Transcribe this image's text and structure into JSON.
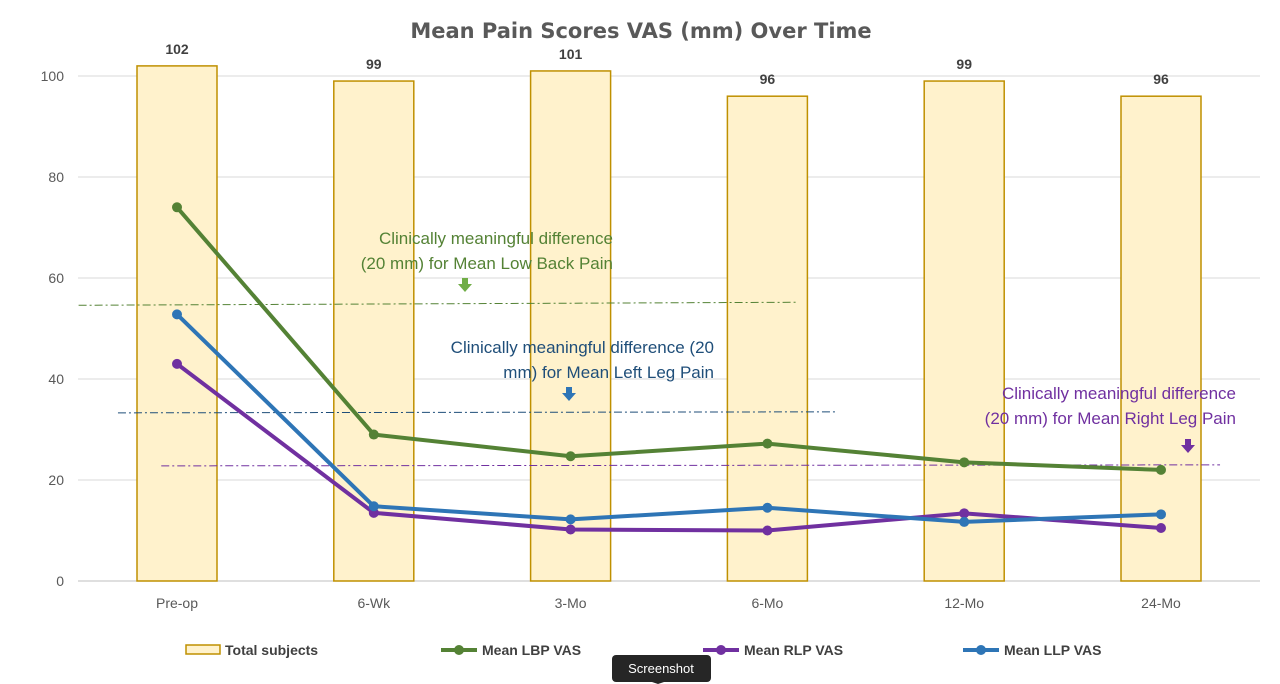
{
  "chart_data": {
    "type": "bar+line",
    "title": "Mean Pain Scores VAS (mm) Over Time",
    "categories": [
      "Pre-op",
      "6-Wk",
      "3-Mo",
      "6-Mo",
      "12-Mo",
      "24-Mo"
    ],
    "ylim": [
      0,
      100
    ],
    "yticks": [
      "0",
      "20",
      "40",
      "60",
      "80",
      "100"
    ],
    "grid": true,
    "legend_position": "bottom",
    "bars": {
      "name": "Total subjects",
      "values": [
        102,
        99,
        101,
        96,
        99,
        96
      ],
      "color": "#fff2cc",
      "edge_color": "#bf9000"
    },
    "series": [
      {
        "name": "Mean LBP VAS",
        "values": [
          74,
          29,
          24.7,
          27.2,
          23.5,
          22
        ],
        "color": "#548235"
      },
      {
        "name": "Mean RLP VAS",
        "values": [
          43,
          13.5,
          10.2,
          10,
          13.4,
          10.5
        ],
        "color": "#7030a0"
      },
      {
        "name": "Mean LLP VAS",
        "values": [
          52.8,
          14.8,
          12.2,
          14.5,
          11.7,
          13.2
        ],
        "color": "#2e75b6"
      }
    ],
    "annotations": [
      {
        "lines": [
          "Clinically meaningful difference",
          "(20 mm) for Mean Low Back Pain"
        ],
        "reference_value": 54.8,
        "span": [
          "Pre-op",
          "6-Mo"
        ],
        "color": "#548235",
        "arrow_color": "#70ad47"
      },
      {
        "lines": [
          "Clinically meaningful difference (20",
          "mm) for Mean Left Leg Pain"
        ],
        "reference_value": 33.3,
        "span": [
          "Pre-op",
          "6-Mo"
        ],
        "color": "#1f4e79",
        "arrow_color": "#2e75b6"
      },
      {
        "lines": [
          "Clinically meaningful difference",
          "(20 mm) for Mean Right Leg Pain"
        ],
        "reference_value": 22.8,
        "span": [
          "Pre-op",
          "24-Mo"
        ],
        "color": "#7030a0",
        "arrow_color": "#7030a0"
      }
    ]
  },
  "tooltip": {
    "label": "Screenshot"
  }
}
